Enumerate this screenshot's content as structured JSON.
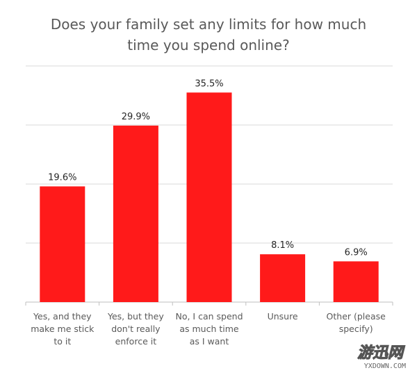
{
  "chart_data": {
    "type": "bar",
    "title": "Does your family set any limits for how much time you spend online?",
    "categories": [
      "Yes, and they make me stick to it",
      "Yes, but they don't really enforce it",
      "No, I can spend as much time as I want",
      "Unsure",
      "Other (please specify)"
    ],
    "values": [
      19.6,
      29.9,
      35.5,
      8.1,
      6.9
    ],
    "data_labels": [
      "19.6%",
      "29.9%",
      "35.5%",
      "8.1%",
      "6.9%"
    ],
    "ylim": [
      0,
      40
    ],
    "grid": true,
    "bar_color": "#ff1a1a"
  },
  "watermark": {
    "cn": "游迅网",
    "en": "YXDOWN.COM"
  }
}
